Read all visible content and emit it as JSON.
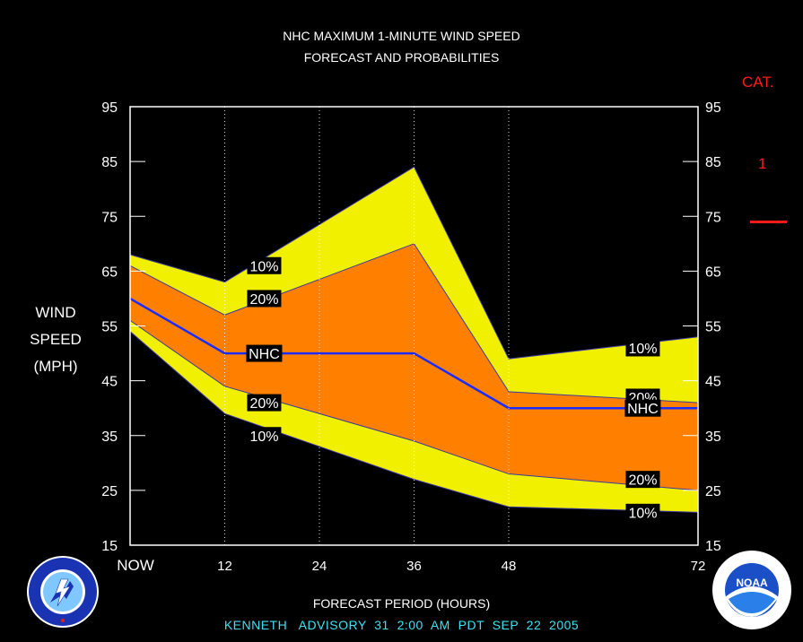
{
  "title_line1": "NHC MAXIMUM 1-MINUTE WIND SPEED",
  "title_line2": "FORECAST AND PROBABILITIES",
  "ylabel_lines": [
    "WIND",
    "SPEED",
    "(MPH)"
  ],
  "xlabel": "FORECAST PERIOD (HOURS)",
  "footer": "KENNETH   ADVISORY  31  2:00  AM  PDT  SEP  22  2005",
  "category": {
    "header": "CAT.",
    "value": "1",
    "color": "#ff1a1a"
  },
  "logos": {
    "left": "NATIONAL WEATHER SERVICE",
    "right": "NOAA",
    "right_ring": "NATIONAL OCEANIC AND ATMOSPHERIC ADMINISTRATION · U.S. DEPARTMENT OF COMMERCE"
  },
  "colors": {
    "outer_band": "#f0f000",
    "inner_band": "#ff8000",
    "nhc_line": "#1a2cff",
    "cat_line": "#ff1a1a",
    "plot_bg": "#000000",
    "frame": "#ffffff"
  },
  "chart_data": {
    "type": "area",
    "title": "NHC MAXIMUM 1-MINUTE WIND SPEED FORECAST AND PROBABILITIES",
    "xlabel": "FORECAST PERIOD (HOURS)",
    "ylabel": "WIND SPEED (MPH)",
    "x_ticks": [
      0,
      12,
      24,
      36,
      48,
      72
    ],
    "x_tick_labels": [
      "NOW",
      "12",
      "24",
      "36",
      "48",
      "72"
    ],
    "y_ticks": [
      15,
      25,
      35,
      45,
      55,
      65,
      75,
      85,
      95
    ],
    "xlim": [
      0,
      72
    ],
    "ylim": [
      15,
      95
    ],
    "grid": "vertical dotted at x ticks",
    "x": [
      0,
      12,
      36,
      48,
      72
    ],
    "series": [
      {
        "name": "10%",
        "values": [
          68,
          63,
          84,
          49,
          53
        ]
      },
      {
        "name": "20%",
        "values": [
          66,
          57,
          70,
          43,
          41
        ]
      },
      {
        "name": "NHC",
        "values": [
          60,
          50,
          50,
          40,
          40
        ]
      },
      {
        "name": "20%",
        "values": [
          56,
          44,
          34,
          28,
          25
        ]
      },
      {
        "name": "10%",
        "values": [
          54,
          39,
          27,
          22,
          21
        ]
      }
    ],
    "annotations": [
      {
        "text": "10%",
        "x": 17,
        "y": 66
      },
      {
        "text": "20%",
        "x": 17,
        "y": 60
      },
      {
        "text": "NHC",
        "x": 17,
        "y": 50
      },
      {
        "text": "20%",
        "x": 17,
        "y": 41
      },
      {
        "text": "10%",
        "x": 17,
        "y": 35
      },
      {
        "text": "10%",
        "x": 65,
        "y": 51
      },
      {
        "text": "20%",
        "x": 65,
        "y": 42
      },
      {
        "text": "NHC",
        "x": 65,
        "y": 40
      },
      {
        "text": "20%",
        "x": 65,
        "y": 27
      },
      {
        "text": "10%",
        "x": 65,
        "y": 21
      }
    ]
  }
}
